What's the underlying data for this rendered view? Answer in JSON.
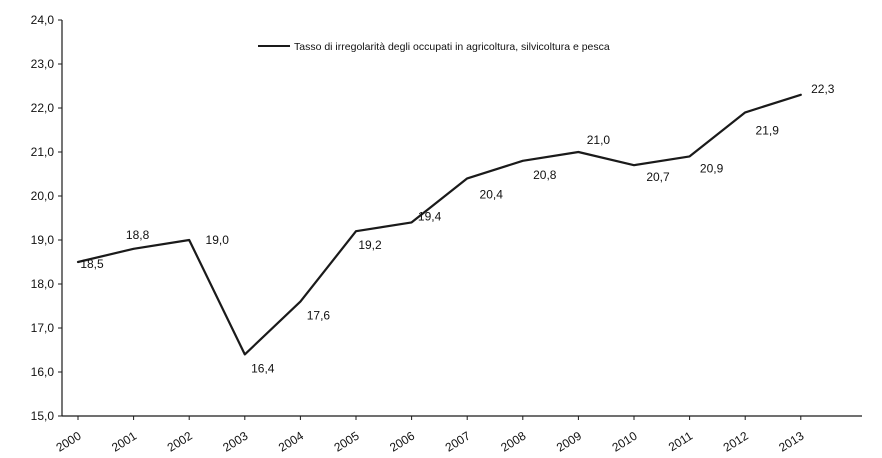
{
  "chart_data": {
    "type": "line",
    "categories": [
      "2000",
      "2001",
      "2002",
      "2003",
      "2004",
      "2005",
      "2006",
      "2007",
      "2008",
      "2009",
      "2010",
      "2011",
      "2012",
      "2013"
    ],
    "series": [
      {
        "name": "Tasso di irregolarità degli occupati in agricoltura, silvicoltura e pesca",
        "values": [
          18.5,
          18.8,
          19.0,
          16.4,
          17.6,
          19.2,
          19.4,
          20.4,
          20.8,
          21.0,
          20.7,
          20.9,
          21.9,
          22.3
        ],
        "labels": [
          "18,5",
          "18,8",
          "19,0",
          "16,4",
          "17,6",
          "19,2",
          "19,4",
          "20,4",
          "20,8",
          "21,0",
          "20,7",
          "20,9",
          "21,9",
          "22,3"
        ]
      }
    ],
    "ylim": [
      15,
      24
    ],
    "yticks": [
      "15,0",
      "16,0",
      "17,0",
      "18,0",
      "19,0",
      "20,0",
      "21,0",
      "22,0",
      "23,0",
      "24,0"
    ],
    "grid": false,
    "legend": "top-center",
    "line_color": "#1a1a1a"
  }
}
